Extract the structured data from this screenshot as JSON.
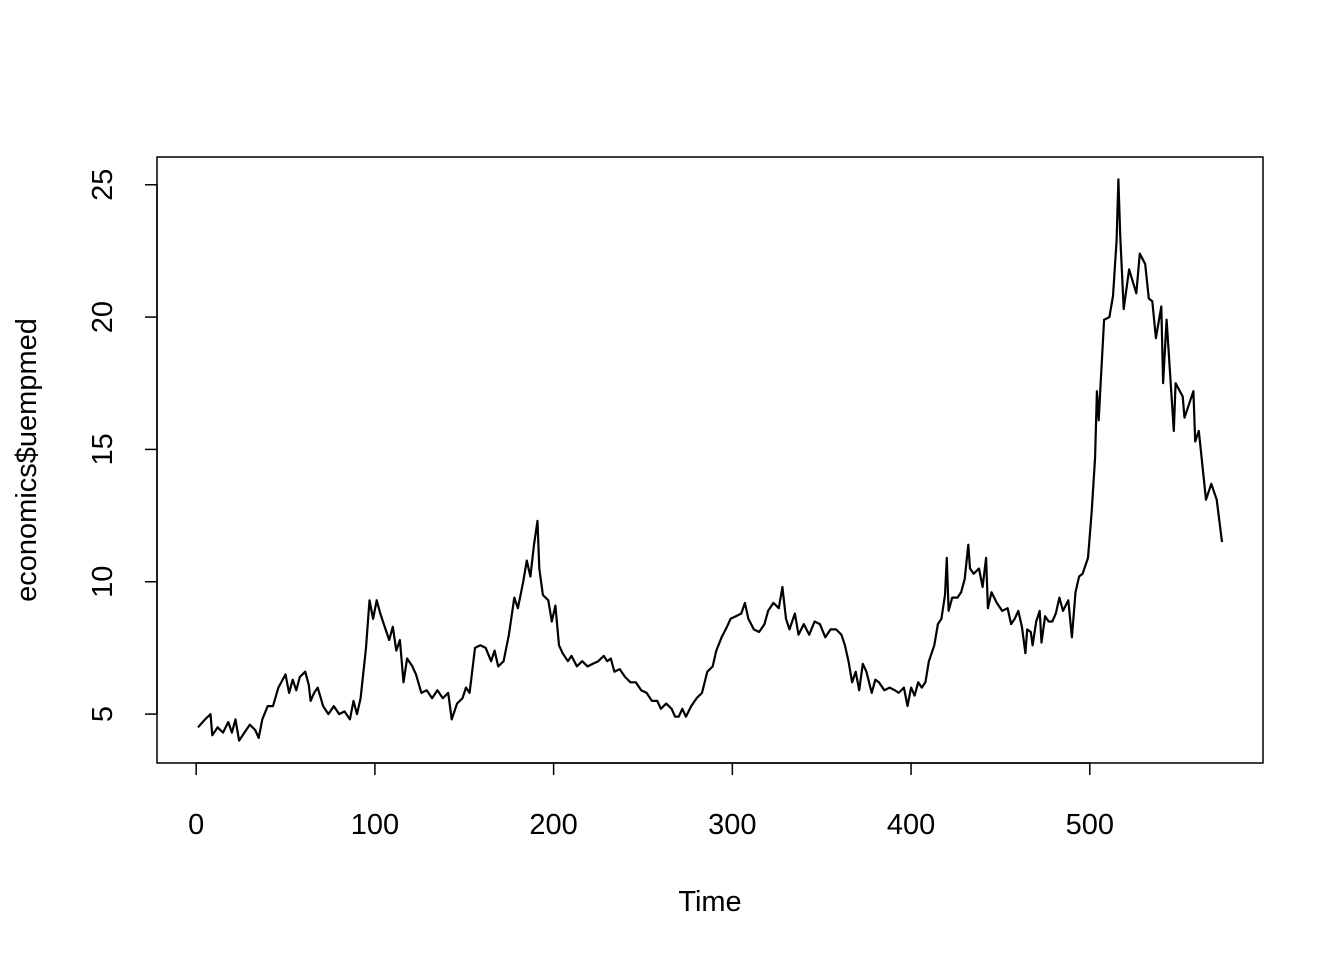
{
  "chart_data": {
    "type": "line",
    "title": "",
    "xlabel": "Time",
    "ylabel": "economics$uempmed",
    "xlim": [
      1,
      574
    ],
    "ylim": [
      4.0,
      25.2
    ],
    "x_ticks": [
      0,
      100,
      200,
      300,
      400,
      500
    ],
    "y_ticks": [
      5,
      10,
      15,
      20,
      25
    ],
    "grid": false,
    "legend": "none",
    "line_color": "#000000",
    "series": [
      {
        "points": [
          [
            1,
            4.5
          ],
          [
            5,
            4.8
          ],
          [
            8,
            5.0
          ],
          [
            9,
            4.2
          ],
          [
            12,
            4.5
          ],
          [
            15,
            4.3
          ],
          [
            18,
            4.7
          ],
          [
            20,
            4.3
          ],
          [
            22,
            4.8
          ],
          [
            24,
            4.0
          ],
          [
            27,
            4.3
          ],
          [
            30,
            4.6
          ],
          [
            33,
            4.4
          ],
          [
            35,
            4.1
          ],
          [
            37,
            4.8
          ],
          [
            40,
            5.3
          ],
          [
            43,
            5.3
          ],
          [
            46,
            6.0
          ],
          [
            50,
            6.5
          ],
          [
            52,
            5.8
          ],
          [
            54,
            6.3
          ],
          [
            56,
            5.9
          ],
          [
            58,
            6.4
          ],
          [
            61,
            6.6
          ],
          [
            63,
            6.1
          ],
          [
            64,
            5.5
          ],
          [
            66,
            5.8
          ],
          [
            68,
            6.0
          ],
          [
            71,
            5.3
          ],
          [
            74,
            5.0
          ],
          [
            77,
            5.3
          ],
          [
            80,
            5.0
          ],
          [
            83,
            5.1
          ],
          [
            86,
            4.8
          ],
          [
            88,
            5.5
          ],
          [
            90,
            5.0
          ],
          [
            92,
            5.6
          ],
          [
            95,
            7.5
          ],
          [
            97,
            9.3
          ],
          [
            99,
            8.6
          ],
          [
            101,
            9.3
          ],
          [
            103,
            8.8
          ],
          [
            105,
            8.4
          ],
          [
            108,
            7.8
          ],
          [
            110,
            8.3
          ],
          [
            112,
            7.4
          ],
          [
            114,
            7.8
          ],
          [
            116,
            6.2
          ],
          [
            118,
            7.1
          ],
          [
            121,
            6.8
          ],
          [
            123,
            6.5
          ],
          [
            126,
            5.8
          ],
          [
            129,
            5.9
          ],
          [
            132,
            5.6
          ],
          [
            135,
            5.9
          ],
          [
            138,
            5.6
          ],
          [
            141,
            5.8
          ],
          [
            143,
            4.8
          ],
          [
            146,
            5.4
          ],
          [
            149,
            5.6
          ],
          [
            151,
            6.0
          ],
          [
            153,
            5.8
          ],
          [
            156,
            7.5
          ],
          [
            159,
            7.6
          ],
          [
            162,
            7.5
          ],
          [
            165,
            7.0
          ],
          [
            167,
            7.4
          ],
          [
            169,
            6.8
          ],
          [
            172,
            7.0
          ],
          [
            175,
            8.0
          ],
          [
            178,
            9.4
          ],
          [
            180,
            9.0
          ],
          [
            183,
            10.0
          ],
          [
            185,
            10.8
          ],
          [
            187,
            10.2
          ],
          [
            189,
            11.4
          ],
          [
            191,
            12.3
          ],
          [
            192,
            10.5
          ],
          [
            194,
            9.5
          ],
          [
            197,
            9.3
          ],
          [
            199,
            8.5
          ],
          [
            201,
            9.1
          ],
          [
            203,
            7.6
          ],
          [
            205,
            7.3
          ],
          [
            208,
            7.0
          ],
          [
            210,
            7.2
          ],
          [
            213,
            6.8
          ],
          [
            216,
            7.0
          ],
          [
            219,
            6.8
          ],
          [
            222,
            6.9
          ],
          [
            225,
            7.0
          ],
          [
            228,
            7.2
          ],
          [
            230,
            7.0
          ],
          [
            232,
            7.1
          ],
          [
            234,
            6.6
          ],
          [
            237,
            6.7
          ],
          [
            240,
            6.4
          ],
          [
            243,
            6.2
          ],
          [
            246,
            6.2
          ],
          [
            249,
            5.9
          ],
          [
            252,
            5.8
          ],
          [
            255,
            5.5
          ],
          [
            258,
            5.5
          ],
          [
            260,
            5.2
          ],
          [
            263,
            5.4
          ],
          [
            266,
            5.2
          ],
          [
            268,
            4.9
          ],
          [
            270,
            4.9
          ],
          [
            272,
            5.2
          ],
          [
            274,
            4.9
          ],
          [
            277,
            5.3
          ],
          [
            280,
            5.6
          ],
          [
            283,
            5.8
          ],
          [
            286,
            6.6
          ],
          [
            289,
            6.8
          ],
          [
            291,
            7.4
          ],
          [
            294,
            7.9
          ],
          [
            297,
            8.3
          ],
          [
            299,
            8.6
          ],
          [
            302,
            8.7
          ],
          [
            305,
            8.8
          ],
          [
            307,
            9.2
          ],
          [
            309,
            8.6
          ],
          [
            312,
            8.2
          ],
          [
            315,
            8.1
          ],
          [
            318,
            8.4
          ],
          [
            320,
            8.9
          ],
          [
            323,
            9.2
          ],
          [
            326,
            9.0
          ],
          [
            328,
            9.8
          ],
          [
            330,
            8.6
          ],
          [
            332,
            8.2
          ],
          [
            335,
            8.8
          ],
          [
            337,
            8.0
          ],
          [
            340,
            8.4
          ],
          [
            343,
            8.0
          ],
          [
            346,
            8.5
          ],
          [
            349,
            8.4
          ],
          [
            352,
            7.9
          ],
          [
            355,
            8.2
          ],
          [
            358,
            8.2
          ],
          [
            361,
            8.0
          ],
          [
            363,
            7.6
          ],
          [
            365,
            7.0
          ],
          [
            367,
            6.2
          ],
          [
            369,
            6.6
          ],
          [
            371,
            5.9
          ],
          [
            373,
            6.9
          ],
          [
            375,
            6.6
          ],
          [
            378,
            5.8
          ],
          [
            380,
            6.3
          ],
          [
            382,
            6.2
          ],
          [
            385,
            5.9
          ],
          [
            388,
            6.0
          ],
          [
            391,
            5.9
          ],
          [
            393,
            5.8
          ],
          [
            396,
            6.0
          ],
          [
            398,
            5.3
          ],
          [
            400,
            6.0
          ],
          [
            402,
            5.7
          ],
          [
            404,
            6.2
          ],
          [
            406,
            6.0
          ],
          [
            408,
            6.2
          ],
          [
            410,
            7.0
          ],
          [
            413,
            7.6
          ],
          [
            415,
            8.4
          ],
          [
            417,
            8.6
          ],
          [
            419,
            9.5
          ],
          [
            420,
            10.9
          ],
          [
            421,
            8.9
          ],
          [
            423,
            9.4
          ],
          [
            426,
            9.4
          ],
          [
            428,
            9.6
          ],
          [
            430,
            10.1
          ],
          [
            432,
            11.4
          ],
          [
            433,
            10.5
          ],
          [
            435,
            10.3
          ],
          [
            438,
            10.5
          ],
          [
            440,
            9.8
          ],
          [
            442,
            10.9
          ],
          [
            443,
            9.0
          ],
          [
            445,
            9.6
          ],
          [
            448,
            9.2
          ],
          [
            451,
            8.9
          ],
          [
            454,
            9.0
          ],
          [
            456,
            8.4
          ],
          [
            458,
            8.6
          ],
          [
            460,
            8.9
          ],
          [
            462,
            8.3
          ],
          [
            464,
            7.3
          ],
          [
            465,
            8.2
          ],
          [
            467,
            8.1
          ],
          [
            468,
            7.6
          ],
          [
            470,
            8.5
          ],
          [
            472,
            8.9
          ],
          [
            473,
            7.7
          ],
          [
            475,
            8.7
          ],
          [
            477,
            8.5
          ],
          [
            479,
            8.5
          ],
          [
            481,
            8.8
          ],
          [
            483,
            9.4
          ],
          [
            485,
            8.9
          ],
          [
            488,
            9.3
          ],
          [
            490,
            7.9
          ],
          [
            492,
            9.6
          ],
          [
            494,
            10.2
          ],
          [
            496,
            10.3
          ],
          [
            499,
            10.9
          ],
          [
            501,
            12.6
          ],
          [
            503,
            14.7
          ],
          [
            504,
            17.2
          ],
          [
            505,
            16.1
          ],
          [
            506,
            17.4
          ],
          [
            508,
            19.9
          ],
          [
            511,
            20.0
          ],
          [
            513,
            20.8
          ],
          [
            515,
            22.9
          ],
          [
            516,
            25.2
          ],
          [
            517,
            23.1
          ],
          [
            519,
            20.3
          ],
          [
            522,
            21.8
          ],
          [
            526,
            20.9
          ],
          [
            528,
            22.4
          ],
          [
            531,
            22.0
          ],
          [
            533,
            20.7
          ],
          [
            535,
            20.6
          ],
          [
            537,
            19.2
          ],
          [
            540,
            20.4
          ],
          [
            541,
            17.5
          ],
          [
            543,
            19.9
          ],
          [
            547,
            15.7
          ],
          [
            548,
            17.5
          ],
          [
            552,
            17.0
          ],
          [
            553,
            16.2
          ],
          [
            558,
            17.2
          ],
          [
            559,
            15.3
          ],
          [
            561,
            15.7
          ],
          [
            565,
            13.1
          ],
          [
            568,
            13.7
          ],
          [
            571,
            13.1
          ],
          [
            574,
            11.5
          ]
        ]
      }
    ]
  }
}
